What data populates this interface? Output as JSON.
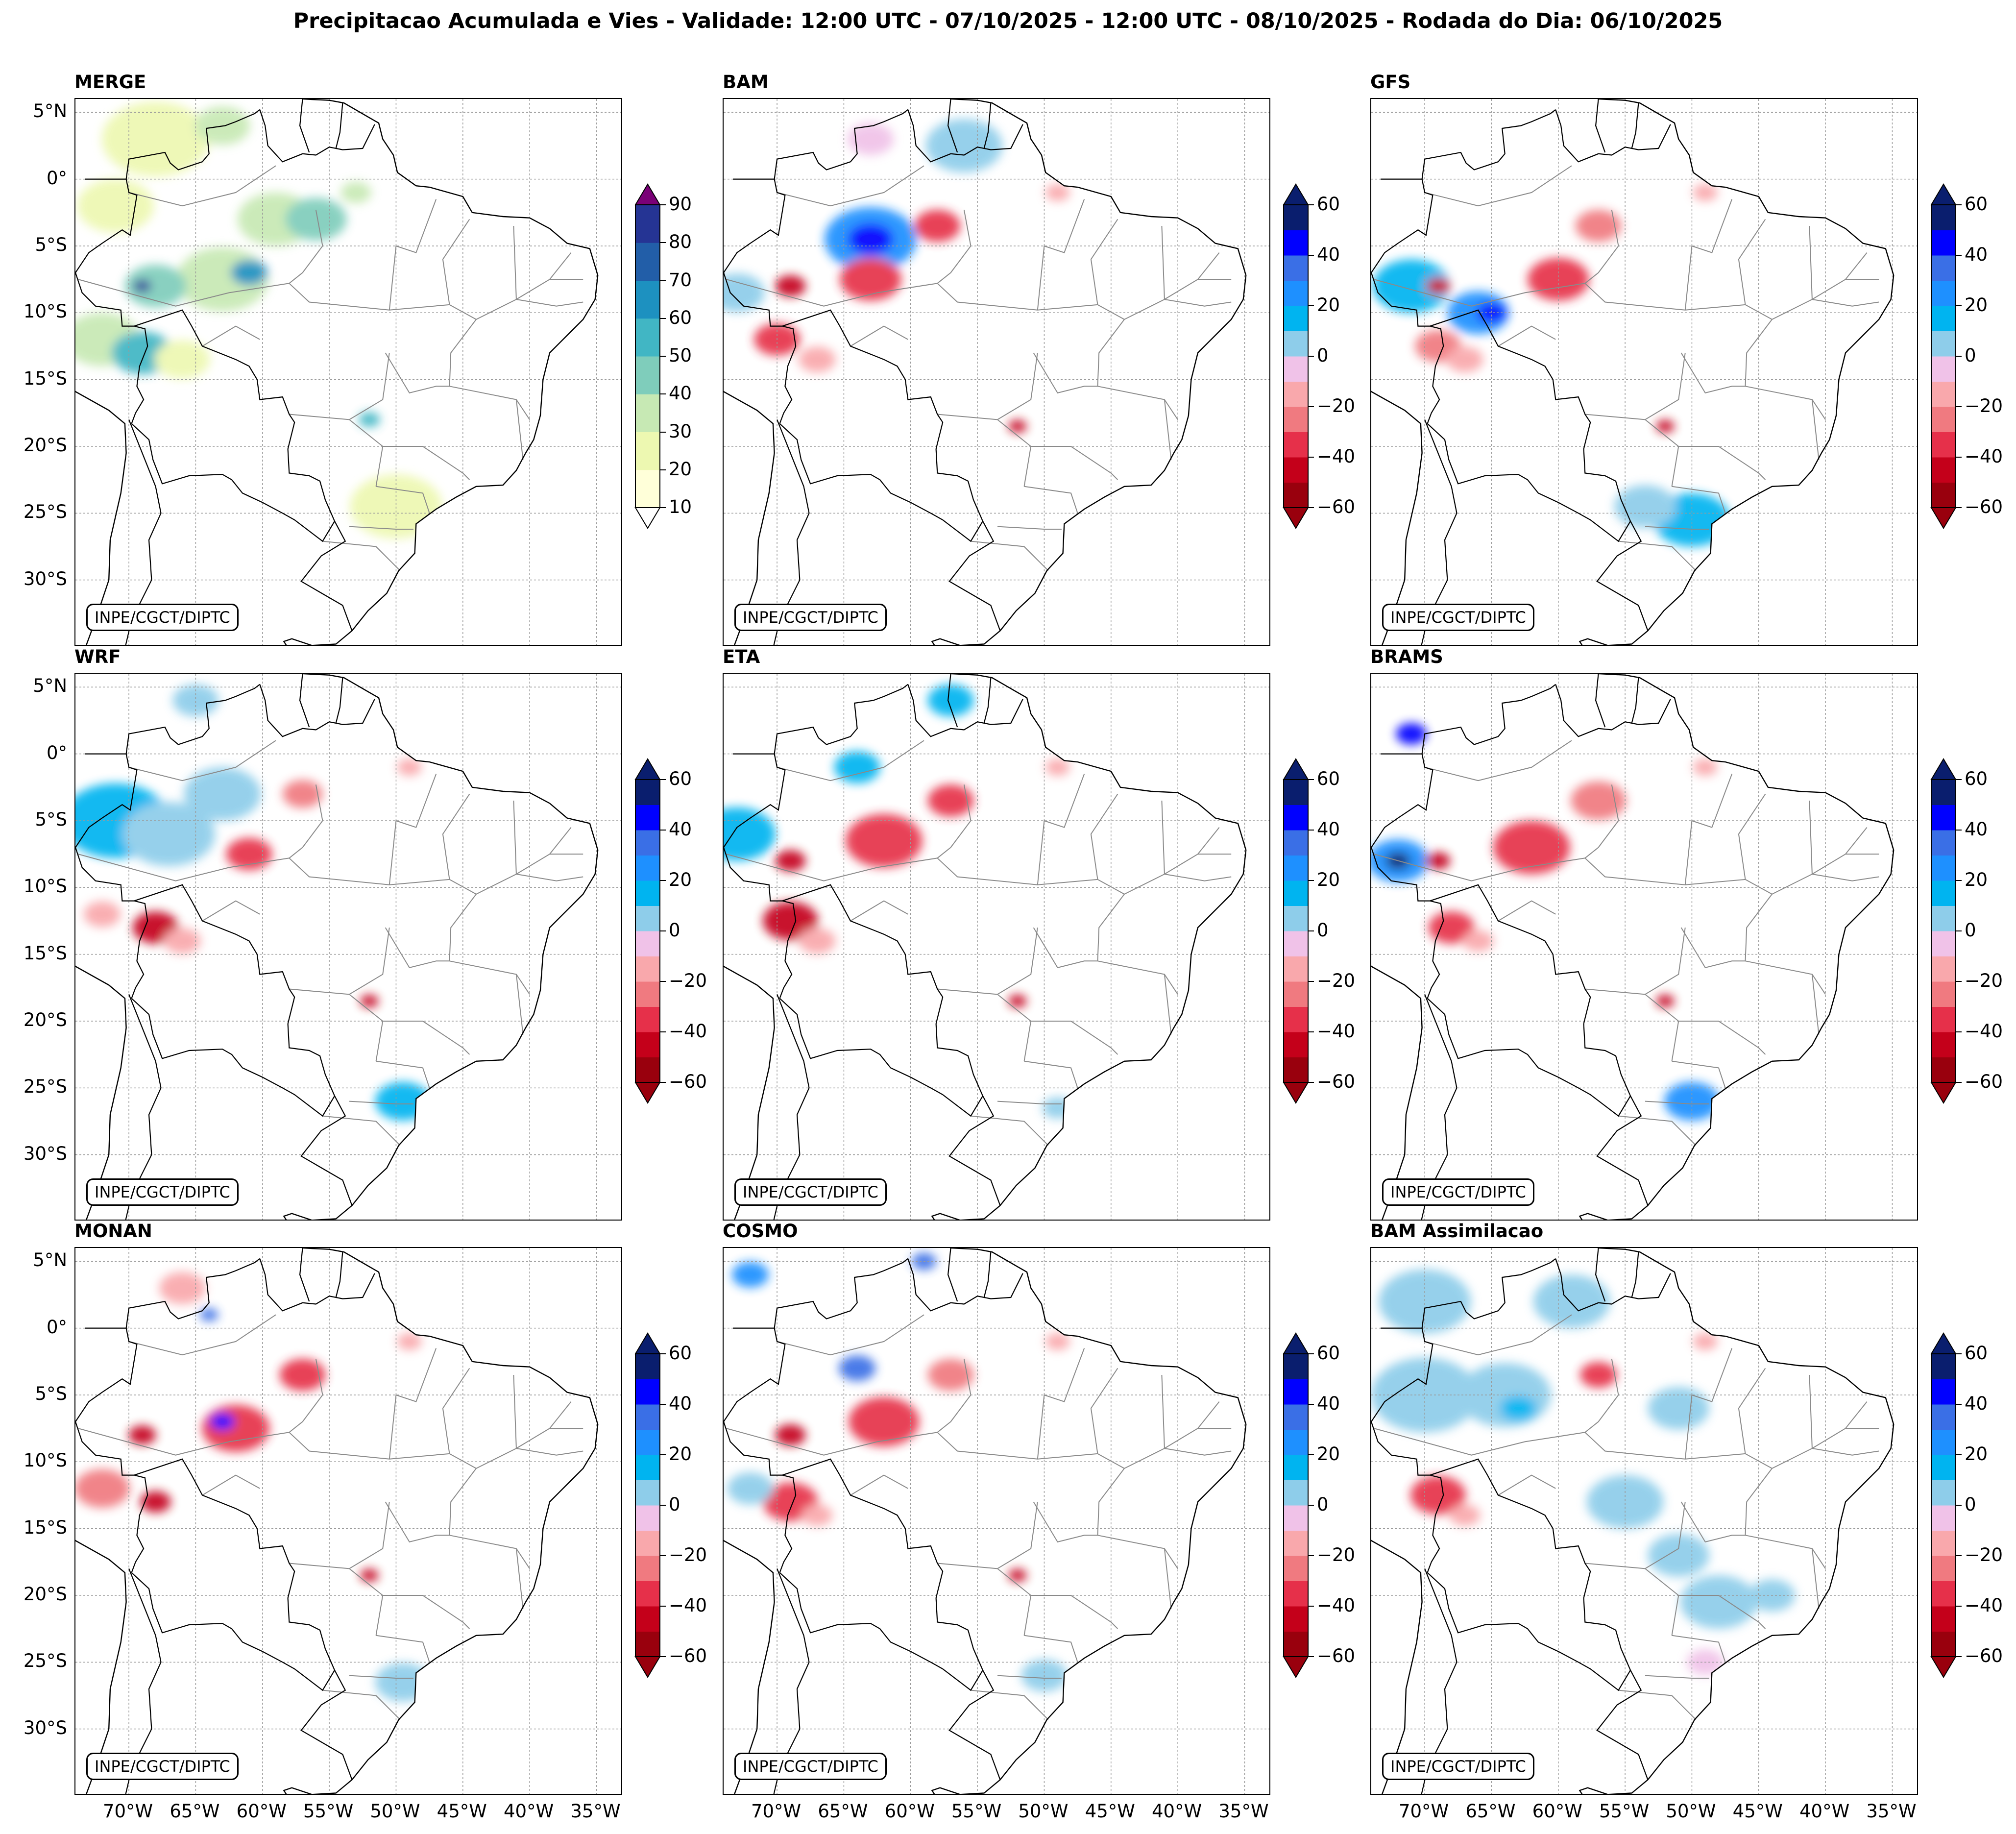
{
  "title": "Precipitacao Acumulada e Vies - Validade: 12:00 UTC - 07/10/2025 - 12:00 UTC - 08/10/2025 - Rodada do Dia: 06/10/2025",
  "credit": "INPE/CGCT/DIPTC",
  "lat_labels": [
    "5°N",
    "0°",
    "5°S",
    "10°S",
    "15°S",
    "20°S",
    "25°S",
    "30°S"
  ],
  "lat_values": [
    5,
    0,
    -5,
    -10,
    -15,
    -20,
    -25,
    -30
  ],
  "lon_labels": [
    "70°W",
    "65°W",
    "60°W",
    "55°W",
    "50°W",
    "45°W",
    "40°W",
    "35°W"
  ],
  "lon_values": [
    -70,
    -65,
    -60,
    -55,
    -50,
    -45,
    -40,
    -35
  ],
  "map_extent": {
    "lon": [
      -74,
      -33
    ],
    "lat": [
      -35,
      6
    ]
  },
  "colors": {
    "merge": [
      "#ffffd9",
      "#edf8b1",
      "#c7e9b4",
      "#7fcdbb",
      "#41b6c4",
      "#1d91c0",
      "#225ea8",
      "#253494",
      "#081d58"
    ],
    "merge_under": "#ffffff",
    "merge_over": "#7a0177",
    "bias_neg": [
      "#99000d",
      "#c4001a",
      "#e6304a",
      "#f07a80",
      "#f9a8ac",
      "#f0c2e8"
    ],
    "bias_pos": [
      "#8ecdea",
      "#00b4f0",
      "#1e90ff",
      "#3a6fe6",
      "#0000ff",
      "#0a1e6e"
    ],
    "coast": "#000000",
    "states": "#8a8a8a"
  },
  "panels": [
    {
      "id": "merge",
      "title": "MERGE",
      "type": "merge",
      "colorbar_ticks": [
        "90",
        "80",
        "70",
        "60",
        "50",
        "40",
        "30",
        "20",
        "10"
      ],
      "colorbar_values": [
        90,
        80,
        70,
        60,
        50,
        40,
        30,
        20,
        10
      ],
      "colorbar_range": [
        10,
        90
      ],
      "blobs": [
        {
          "lon": -68,
          "lat": 3,
          "r": 3.5,
          "c": 1
        },
        {
          "lon": -63,
          "lat": 4,
          "r": 1.8,
          "c": 2
        },
        {
          "lon": -71,
          "lat": -2,
          "r": 2.5,
          "c": 1
        },
        {
          "lon": -59,
          "lat": -3,
          "r": 2.5,
          "c": 2
        },
        {
          "lon": -56,
          "lat": -3,
          "r": 2,
          "c": 3
        },
        {
          "lon": -63,
          "lat": -7.5,
          "r": 3,
          "c": 2
        },
        {
          "lon": -61,
          "lat": -7,
          "r": 1.2,
          "c": 5
        },
        {
          "lon": -68,
          "lat": -8,
          "r": 2,
          "c": 3
        },
        {
          "lon": -69,
          "lat": -8,
          "r": 0.6,
          "c": 7
        },
        {
          "lon": -72,
          "lat": -12,
          "r": 2.5,
          "c": 2
        },
        {
          "lon": -69,
          "lat": -13,
          "r": 2,
          "c": 4
        },
        {
          "lon": -66,
          "lat": -13.5,
          "r": 1.8,
          "c": 1
        },
        {
          "lon": -52,
          "lat": -18,
          "r": 0.7,
          "c": 4
        },
        {
          "lon": -50,
          "lat": -24.5,
          "r": 3,
          "c": 1
        },
        {
          "lon": -53,
          "lat": -1,
          "r": 1,
          "c": 2
        }
      ]
    },
    {
      "id": "bam",
      "title": "BAM",
      "type": "bias",
      "colorbar_ticks": [
        "60",
        "40",
        "20",
        "0",
        "−20",
        "−40",
        "−60"
      ],
      "colorbar_values": [
        60,
        40,
        20,
        0,
        -20,
        -40,
        -60
      ],
      "colorbar_range": [
        -60,
        60
      ],
      "blobs": [
        {
          "lon": -63,
          "lat": -4.5,
          "r": 3,
          "c": 8
        },
        {
          "lon": -63,
          "lat": -4.5,
          "r": 1.5,
          "c": 10
        },
        {
          "lon": -63,
          "lat": -7.5,
          "r": 2,
          "c": 2
        },
        {
          "lon": -58,
          "lat": -3.5,
          "r": 1.5,
          "c": 2
        },
        {
          "lon": -69,
          "lat": -8,
          "r": 1,
          "c": 1
        },
        {
          "lon": -70,
          "lat": -12,
          "r": 1.5,
          "c": 2
        },
        {
          "lon": -67,
          "lat": -13.5,
          "r": 1.2,
          "c": 4
        },
        {
          "lon": -56,
          "lat": 2.5,
          "r": 2.5,
          "c": 6
        },
        {
          "lon": -73,
          "lat": -8.5,
          "r": 1.8,
          "c": 6
        },
        {
          "lon": -52,
          "lat": -18.5,
          "r": 0.6,
          "c": 1
        },
        {
          "lon": -63,
          "lat": 3,
          "r": 1.5,
          "c": 5
        },
        {
          "lon": -49,
          "lat": -1,
          "r": 0.8,
          "c": 4
        }
      ]
    },
    {
      "id": "gfs",
      "title": "GFS",
      "type": "bias",
      "colorbar_ticks": [
        "60",
        "40",
        "20",
        "0",
        "−20",
        "−40",
        "−60"
      ],
      "colorbar_values": [
        60,
        40,
        20,
        0,
        -20,
        -40,
        -60
      ],
      "colorbar_range": [
        -60,
        60
      ],
      "blobs": [
        {
          "lon": -71,
          "lat": -8,
          "r": 2.5,
          "c": 7
        },
        {
          "lon": -66,
          "lat": -10,
          "r": 2,
          "c": 8
        },
        {
          "lon": -65,
          "lat": -10,
          "r": 1,
          "c": 10
        },
        {
          "lon": -60,
          "lat": -7.5,
          "r": 2,
          "c": 2
        },
        {
          "lon": -57,
          "lat": -3.5,
          "r": 1.5,
          "c": 3
        },
        {
          "lon": -69,
          "lat": -8,
          "r": 0.8,
          "c": 1
        },
        {
          "lon": -69,
          "lat": -12.5,
          "r": 1.5,
          "c": 3
        },
        {
          "lon": -67,
          "lat": -13.5,
          "r": 1.2,
          "c": 4
        },
        {
          "lon": -50,
          "lat": -25.5,
          "r": 2.5,
          "c": 7
        },
        {
          "lon": -53.5,
          "lat": -24.5,
          "r": 2,
          "c": 6
        },
        {
          "lon": -52,
          "lat": -18.5,
          "r": 0.6,
          "c": 1
        },
        {
          "lon": -49,
          "lat": -1,
          "r": 0.8,
          "c": 4
        }
      ]
    },
    {
      "id": "wrf",
      "title": "WRF",
      "type": "bias",
      "colorbar_ticks": [
        "60",
        "40",
        "20",
        "0",
        "−20",
        "−40",
        "−60"
      ],
      "colorbar_values": [
        60,
        40,
        20,
        0,
        -20,
        -40,
        -60
      ],
      "colorbar_range": [
        -60,
        60
      ],
      "blobs": [
        {
          "lon": -71,
          "lat": -5,
          "r": 3.5,
          "c": 7
        },
        {
          "lon": -67,
          "lat": -6,
          "r": 3,
          "c": 6
        },
        {
          "lon": -63,
          "lat": -3,
          "r": 2.5,
          "c": 6
        },
        {
          "lon": -61,
          "lat": -7.5,
          "r": 1.5,
          "c": 2
        },
        {
          "lon": -57,
          "lat": -3,
          "r": 1.3,
          "c": 3
        },
        {
          "lon": -68,
          "lat": -13,
          "r": 1.5,
          "c": 1
        },
        {
          "lon": -66,
          "lat": -14,
          "r": 1.2,
          "c": 4
        },
        {
          "lon": -72,
          "lat": -12,
          "r": 1.2,
          "c": 4
        },
        {
          "lon": -52,
          "lat": -18.5,
          "r": 0.6,
          "c": 1
        },
        {
          "lon": -49.5,
          "lat": -26,
          "r": 1.8,
          "c": 7
        },
        {
          "lon": -65,
          "lat": 4,
          "r": 1.5,
          "c": 6
        },
        {
          "lon": -49,
          "lat": -1,
          "r": 0.8,
          "c": 4
        }
      ]
    },
    {
      "id": "eta",
      "title": "ETA",
      "type": "bias",
      "colorbar_ticks": [
        "60",
        "40",
        "20",
        "0",
        "−20",
        "−40",
        "−60"
      ],
      "colorbar_values": [
        60,
        40,
        20,
        0,
        -20,
        -40,
        -60
      ],
      "colorbar_range": [
        -60,
        60
      ],
      "blobs": [
        {
          "lon": -62,
          "lat": -6.5,
          "r": 2.5,
          "c": 2
        },
        {
          "lon": -57,
          "lat": -3.5,
          "r": 1.5,
          "c": 2
        },
        {
          "lon": -69,
          "lat": -8,
          "r": 1,
          "c": 1
        },
        {
          "lon": -69,
          "lat": -12.5,
          "r": 1.8,
          "c": 1
        },
        {
          "lon": -67,
          "lat": -14,
          "r": 1.2,
          "c": 4
        },
        {
          "lon": -73,
          "lat": -6,
          "r": 2.5,
          "c": 7
        },
        {
          "lon": -64,
          "lat": -1,
          "r": 1.5,
          "c": 7
        },
        {
          "lon": -57,
          "lat": 4,
          "r": 1.5,
          "c": 7
        },
        {
          "lon": -52,
          "lat": -18.5,
          "r": 0.6,
          "c": 1
        },
        {
          "lon": -49,
          "lat": -1,
          "r": 0.8,
          "c": 4
        },
        {
          "lon": -49,
          "lat": -26.5,
          "r": 1,
          "c": 6
        }
      ]
    },
    {
      "id": "brams",
      "title": "BRAMS",
      "type": "bias",
      "colorbar_ticks": [
        "60",
        "40",
        "20",
        "0",
        "−20",
        "−40",
        "−60"
      ],
      "colorbar_values": [
        60,
        40,
        20,
        0,
        -20,
        -40,
        -60
      ],
      "colorbar_range": [
        -60,
        60
      ],
      "blobs": [
        {
          "lon": -72,
          "lat": -8,
          "r": 2,
          "c": 8
        },
        {
          "lon": -72,
          "lat": -8,
          "r": 0.8,
          "c": 11
        },
        {
          "lon": -71,
          "lat": 1.5,
          "r": 1,
          "c": 10
        },
        {
          "lon": -62,
          "lat": -7,
          "r": 2.5,
          "c": 2
        },
        {
          "lon": -57,
          "lat": -3.5,
          "r": 1.8,
          "c": 3
        },
        {
          "lon": -69,
          "lat": -8,
          "r": 0.8,
          "c": 1
        },
        {
          "lon": -68,
          "lat": -13,
          "r": 1.5,
          "c": 2
        },
        {
          "lon": -66,
          "lat": -14,
          "r": 1,
          "c": 4
        },
        {
          "lon": -50,
          "lat": -26,
          "r": 1.8,
          "c": 8
        },
        {
          "lon": -52,
          "lat": -18.5,
          "r": 0.6,
          "c": 1
        },
        {
          "lon": -49,
          "lat": -1,
          "r": 0.8,
          "c": 4
        }
      ]
    },
    {
      "id": "monan",
      "title": "MONAN",
      "type": "bias",
      "colorbar_ticks": [
        "60",
        "40",
        "20",
        "0",
        "−20",
        "−40",
        "−60"
      ],
      "colorbar_values": [
        60,
        40,
        20,
        0,
        -20,
        -40,
        -60
      ],
      "colorbar_range": [
        -60,
        60
      ],
      "blobs": [
        {
          "lon": -62,
          "lat": -7.5,
          "r": 2.2,
          "c": 2
        },
        {
          "lon": -57,
          "lat": -3.5,
          "r": 1.5,
          "c": 2
        },
        {
          "lon": -69,
          "lat": -8,
          "r": 0.9,
          "c": 1
        },
        {
          "lon": -72,
          "lat": -12,
          "r": 1.8,
          "c": 3
        },
        {
          "lon": -68,
          "lat": -13,
          "r": 1,
          "c": 1
        },
        {
          "lon": -63,
          "lat": -7,
          "r": 0.8,
          "c": 10
        },
        {
          "lon": -66,
          "lat": 3,
          "r": 1.5,
          "c": 4
        },
        {
          "lon": -64,
          "lat": 1,
          "r": 0.6,
          "c": 9
        },
        {
          "lon": -52,
          "lat": -18.5,
          "r": 0.6,
          "c": 1
        },
        {
          "lon": -49.5,
          "lat": -26.5,
          "r": 1.8,
          "c": 6
        },
        {
          "lon": -49,
          "lat": -1,
          "r": 0.8,
          "c": 4
        }
      ]
    },
    {
      "id": "cosmo",
      "title": "COSMO",
      "type": "bias",
      "colorbar_ticks": [
        "60",
        "40",
        "20",
        "0",
        "−20",
        "−40",
        "−60"
      ],
      "colorbar_values": [
        60,
        40,
        20,
        0,
        -20,
        -40,
        -60
      ],
      "colorbar_range": [
        -60,
        60
      ],
      "blobs": [
        {
          "lon": -62,
          "lat": -7,
          "r": 2.3,
          "c": 2
        },
        {
          "lon": -57,
          "lat": -3.5,
          "r": 1.5,
          "c": 3
        },
        {
          "lon": -69,
          "lat": -8,
          "r": 1,
          "c": 1
        },
        {
          "lon": -69,
          "lat": -13,
          "r": 1.8,
          "c": 2
        },
        {
          "lon": -67,
          "lat": -14,
          "r": 1,
          "c": 4
        },
        {
          "lon": -64,
          "lat": -3,
          "r": 1.2,
          "c": 9
        },
        {
          "lon": -72,
          "lat": 4,
          "r": 1.2,
          "c": 8
        },
        {
          "lon": -72,
          "lat": -12,
          "r": 1.5,
          "c": 6
        },
        {
          "lon": -52,
          "lat": -18.5,
          "r": 0.6,
          "c": 1
        },
        {
          "lon": -49,
          "lat": -1,
          "r": 0.8,
          "c": 4
        },
        {
          "lon": -50,
          "lat": -26,
          "r": 1.5,
          "c": 6
        },
        {
          "lon": -59,
          "lat": 5,
          "r": 0.8,
          "c": 9
        }
      ]
    },
    {
      "id": "bam_assim",
      "title": "BAM Assimilacao",
      "type": "bias",
      "colorbar_ticks": [
        "60",
        "40",
        "20",
        "0",
        "−20",
        "−40",
        "−60"
      ],
      "colorbar_values": [
        60,
        40,
        20,
        0,
        -20,
        -40,
        -60
      ],
      "colorbar_range": [
        -60,
        60
      ],
      "blobs": [
        {
          "lon": -70,
          "lat": -5,
          "r": 3.5,
          "c": 6
        },
        {
          "lon": -64,
          "lat": -5,
          "r": 3,
          "c": 6
        },
        {
          "lon": -63,
          "lat": -6,
          "r": 1.2,
          "c": 7
        },
        {
          "lon": -70,
          "lat": 2,
          "r": 3,
          "c": 6
        },
        {
          "lon": -59,
          "lat": 2,
          "r": 2.5,
          "c": 6
        },
        {
          "lon": -51,
          "lat": -6,
          "r": 2,
          "c": 6
        },
        {
          "lon": -55,
          "lat": -13,
          "r": 2.5,
          "c": 6
        },
        {
          "lon": -51,
          "lat": -17,
          "r": 2,
          "c": 6
        },
        {
          "lon": -48,
          "lat": -20.5,
          "r": 2.5,
          "c": 6
        },
        {
          "lon": -44,
          "lat": -20,
          "r": 1.5,
          "c": 6
        },
        {
          "lon": -69,
          "lat": -12.5,
          "r": 1.8,
          "c": 2
        },
        {
          "lon": -67,
          "lat": -14,
          "r": 1,
          "c": 4
        },
        {
          "lon": -57,
          "lat": -3.5,
          "r": 1.2,
          "c": 2
        },
        {
          "lon": -49,
          "lat": -1,
          "r": 0.8,
          "c": 4
        },
        {
          "lon": -49,
          "lat": -25,
          "r": 1.2,
          "c": 5
        }
      ]
    }
  ]
}
